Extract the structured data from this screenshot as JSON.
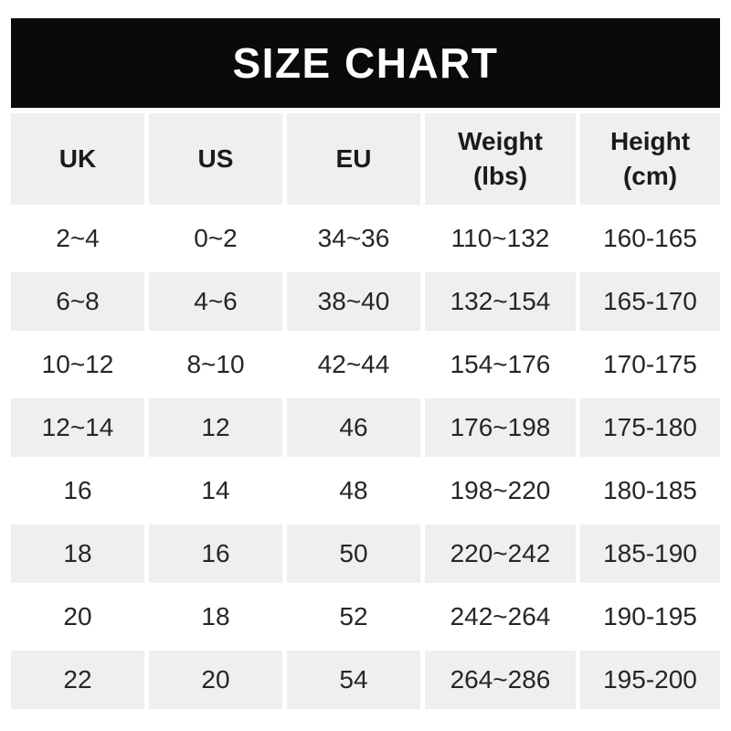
{
  "title": "SIZE CHART",
  "colors": {
    "banner_bg": "#0a0a0a",
    "banner_text": "#ffffff",
    "alt_row_bg": "#f0eff0",
    "row_bg": "#ffffff",
    "text": "#262626"
  },
  "chart_data": {
    "type": "table",
    "title": "SIZE CHART",
    "legend_position": "none",
    "grid": false,
    "columns": [
      {
        "label": "UK",
        "sub": ""
      },
      {
        "label": "US",
        "sub": ""
      },
      {
        "label": "EU",
        "sub": ""
      },
      {
        "label": "Weight",
        "sub": "(lbs)"
      },
      {
        "label": "Height",
        "sub": "(cm)"
      }
    ],
    "rows": [
      [
        "2~4",
        "0~2",
        "34~36",
        "110~132",
        "160-165"
      ],
      [
        "6~8",
        "4~6",
        "38~40",
        "132~154",
        "165-170"
      ],
      [
        "10~12",
        "8~10",
        "42~44",
        "154~176",
        "170-175"
      ],
      [
        "12~14",
        "12",
        "46",
        "176~198",
        "175-180"
      ],
      [
        "16",
        "14",
        "48",
        "198~220",
        "180-185"
      ],
      [
        "18",
        "16",
        "50",
        "220~242",
        "185-190"
      ],
      [
        "20",
        "18",
        "52",
        "242~264",
        "190-195"
      ],
      [
        "22",
        "20",
        "54",
        "264~286",
        "195-200"
      ]
    ]
  }
}
